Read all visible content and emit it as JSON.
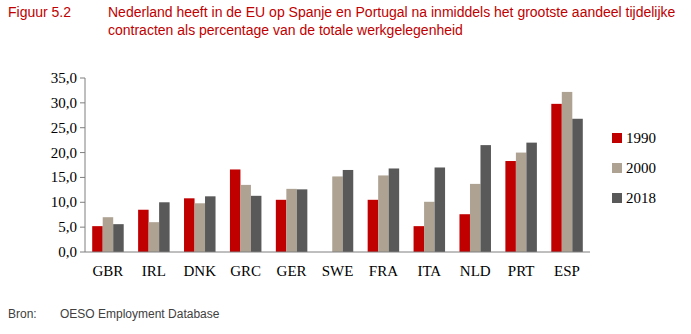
{
  "chart_data": {
    "type": "bar",
    "figure_label": "Figuur 5.2",
    "title": "Nederland heeft in de EU op Spanje en Portugal na inmiddels het grootste aandeel tijdelijke contracten als percentage van de totale werkgelegenheid",
    "source_label": "Bron:",
    "source": "OESO Employment Database",
    "categories": [
      "GBR",
      "IRL",
      "DNK",
      "GRC",
      "GER",
      "SWE",
      "FRA",
      "ITA",
      "NLD",
      "PRT",
      "ESP"
    ],
    "series": [
      {
        "name": "1990",
        "color": "#c00000",
        "values": [
          5.2,
          8.5,
          10.8,
          16.6,
          10.5,
          null,
          10.5,
          5.2,
          7.6,
          18.3,
          29.8
        ]
      },
      {
        "name": "2000",
        "color": "#aea393",
        "values": [
          7.0,
          6.0,
          9.8,
          13.5,
          12.7,
          15.2,
          15.4,
          10.1,
          13.7,
          20.0,
          32.2
        ]
      },
      {
        "name": "2018",
        "color": "#595959",
        "values": [
          5.6,
          10.0,
          11.2,
          11.3,
          12.6,
          16.5,
          16.8,
          17.0,
          21.5,
          22.0,
          26.8
        ]
      }
    ],
    "ylim": [
      0,
      35
    ],
    "yticks": [
      {
        "value": 0,
        "label": "0,0"
      },
      {
        "value": 5,
        "label": "5,0"
      },
      {
        "value": 10,
        "label": "10,0"
      },
      {
        "value": 15,
        "label": "15,0"
      },
      {
        "value": 20,
        "label": "20,0"
      },
      {
        "value": 25,
        "label": "25,0"
      },
      {
        "value": 30,
        "label": "30,0"
      },
      {
        "value": 35,
        "label": "35,0"
      }
    ],
    "grid": false,
    "legend": "right"
  }
}
